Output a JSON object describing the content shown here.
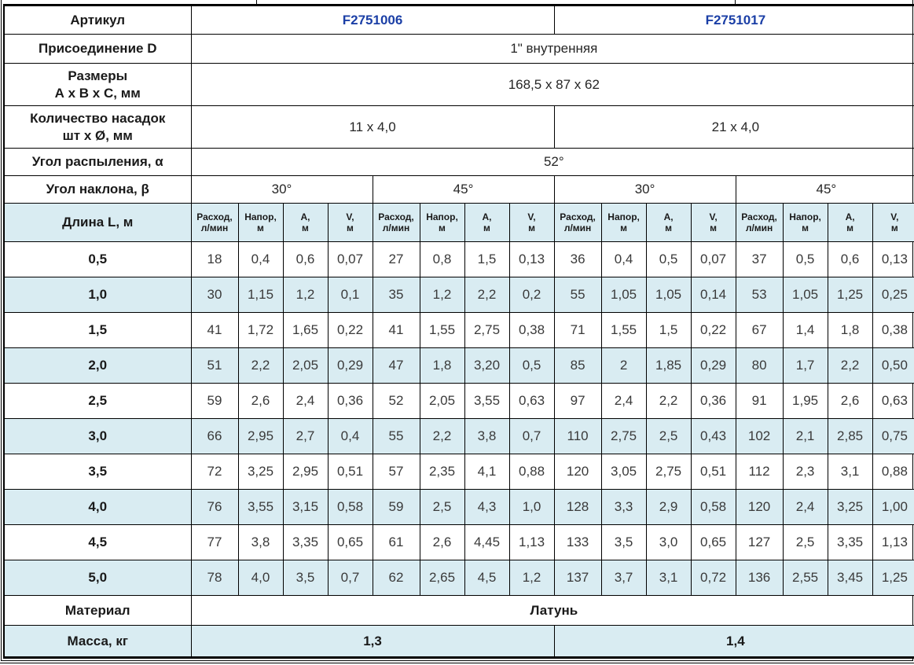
{
  "colors": {
    "accent_blue": "#1b3fa6",
    "row_highlight": "#d9ecf2",
    "border": "#000000"
  },
  "table": {
    "article": {
      "label": "Артикул",
      "left": "F2751006",
      "right": "F2751017"
    },
    "connection": {
      "label": "Присоединение D",
      "value": "1\" внутренняя"
    },
    "dimensions": {
      "label": "Размеры\nА х В х С, мм",
      "value": "168,5 x 87 x 62"
    },
    "nozzles": {
      "label": "Количество насадок\nшт х Ø, мм",
      "left": "11 x 4,0",
      "right": "21 x 4,0"
    },
    "spray_angle": {
      "label": "Угол распыления, α",
      "value": "52°"
    },
    "tilt_angle": {
      "label": "Угол наклона, β",
      "values": [
        "30°",
        "45°",
        "30°",
        "45°"
      ]
    },
    "length_header": {
      "label": "Длина L, м",
      "col_headers": [
        "Расход,\nл/мин",
        "Напор,\nм",
        "А,\nм",
        "V,\nм"
      ]
    },
    "data_rows": [
      {
        "length": "0,5",
        "values": [
          "18",
          "0,4",
          "0,6",
          "0,07",
          "27",
          "0,8",
          "1,5",
          "0,13",
          "36",
          "0,4",
          "0,5",
          "0,07",
          "37",
          "0,5",
          "0,6",
          "0,13"
        ]
      },
      {
        "length": "1,0",
        "values": [
          "30",
          "1,15",
          "1,2",
          "0,1",
          "35",
          "1,2",
          "2,2",
          "0,2",
          "55",
          "1,05",
          "1,05",
          "0,14",
          "53",
          "1,05",
          "1,25",
          "0,25"
        ]
      },
      {
        "length": "1,5",
        "values": [
          "41",
          "1,72",
          "1,65",
          "0,22",
          "41",
          "1,55",
          "2,75",
          "0,38",
          "71",
          "1,55",
          "1,5",
          "0,22",
          "67",
          "1,4",
          "1,8",
          "0,38"
        ]
      },
      {
        "length": "2,0",
        "values": [
          "51",
          "2,2",
          "2,05",
          "0,29",
          "47",
          "1,8",
          "3,20",
          "0,5",
          "85",
          "2",
          "1,85",
          "0,29",
          "80",
          "1,7",
          "2,2",
          "0,50"
        ]
      },
      {
        "length": "2,5",
        "values": [
          "59",
          "2,6",
          "2,4",
          "0,36",
          "52",
          "2,05",
          "3,55",
          "0,63",
          "97",
          "2,4",
          "2,2",
          "0,36",
          "91",
          "1,95",
          "2,6",
          "0,63"
        ]
      },
      {
        "length": "3,0",
        "values": [
          "66",
          "2,95",
          "2,7",
          "0,4",
          "55",
          "2,2",
          "3,8",
          "0,7",
          "110",
          "2,75",
          "2,5",
          "0,43",
          "102",
          "2,1",
          "2,85",
          "0,75"
        ]
      },
      {
        "length": "3,5",
        "values": [
          "72",
          "3,25",
          "2,95",
          "0,51",
          "57",
          "2,35",
          "4,1",
          "0,88",
          "120",
          "3,05",
          "2,75",
          "0,51",
          "112",
          "2,3",
          "3,1",
          "0,88"
        ]
      },
      {
        "length": "4,0",
        "values": [
          "76",
          "3,55",
          "3,15",
          "0,58",
          "59",
          "2,5",
          "4,3",
          "1,0",
          "128",
          "3,3",
          "2,9",
          "0,58",
          "120",
          "2,4",
          "3,25",
          "1,00"
        ]
      },
      {
        "length": "4,5",
        "values": [
          "77",
          "3,8",
          "3,35",
          "0,65",
          "61",
          "2,6",
          "4,45",
          "1,13",
          "133",
          "3,5",
          "3,0",
          "0,65",
          "127",
          "2,5",
          "3,35",
          "1,13"
        ]
      },
      {
        "length": "5,0",
        "values": [
          "78",
          "4,0",
          "3,5",
          "0,7",
          "62",
          "2,65",
          "4,5",
          "1,2",
          "137",
          "3,7",
          "3,1",
          "0,72",
          "136",
          "2,55",
          "3,45",
          "1,25"
        ]
      }
    ],
    "material": {
      "label": "Материал",
      "value": "Латунь"
    },
    "mass": {
      "label": "Масса, кг",
      "left": "1,3",
      "right": "1,4"
    }
  }
}
